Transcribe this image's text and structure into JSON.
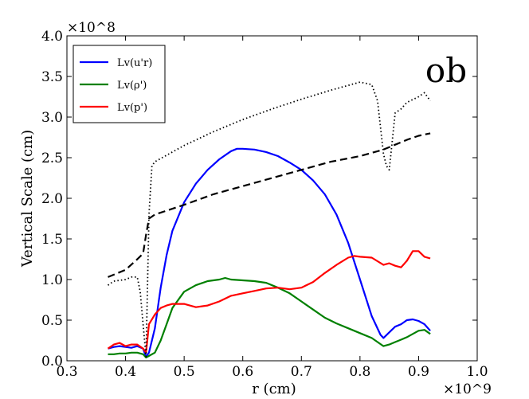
{
  "chart_data": {
    "type": "line",
    "title": "",
    "panel_label": "ob",
    "xlabel": "r (cm)",
    "ylabel": "Vertical Scale (cm)",
    "x_multiplier": "×10^9",
    "y_multiplier": "×10^8",
    "xlim": [
      0.3,
      1.0
    ],
    "ylim": [
      0.0,
      4.0
    ],
    "x_ticks": [
      0.3,
      0.4,
      0.5,
      0.6,
      0.7,
      0.8,
      0.9,
      1.0
    ],
    "x_tick_labels": [
      "0.3",
      "0.4",
      "0.5",
      "0.6",
      "0.7",
      "0.8",
      "0.9",
      "1.0"
    ],
    "y_ticks": [
      0.0,
      0.5,
      1.0,
      1.5,
      2.0,
      2.5,
      3.0,
      3.5,
      4.0
    ],
    "y_tick_labels": [
      "0.0",
      "0.5",
      "1.0",
      "1.5",
      "2.0",
      "2.5",
      "3.0",
      "3.5",
      "4.0"
    ],
    "legend_position": "upper-left",
    "series": [
      {
        "name": "Lv(u'r)",
        "color": "#0000ff",
        "style": "solid",
        "in_legend": true,
        "x": [
          0.37,
          0.38,
          0.39,
          0.4,
          0.41,
          0.42,
          0.43,
          0.435,
          0.44,
          0.45,
          0.46,
          0.47,
          0.48,
          0.5,
          0.52,
          0.54,
          0.56,
          0.58,
          0.59,
          0.6,
          0.62,
          0.64,
          0.66,
          0.68,
          0.7,
          0.72,
          0.74,
          0.76,
          0.78,
          0.8,
          0.82,
          0.835,
          0.84,
          0.85,
          0.86,
          0.87,
          0.88,
          0.89,
          0.9,
          0.91,
          0.92
        ],
        "y": [
          0.15,
          0.17,
          0.18,
          0.17,
          0.16,
          0.18,
          0.15,
          0.05,
          0.1,
          0.4,
          0.9,
          1.3,
          1.6,
          1.95,
          2.18,
          2.35,
          2.48,
          2.58,
          2.61,
          2.61,
          2.6,
          2.57,
          2.52,
          2.44,
          2.35,
          2.22,
          2.05,
          1.8,
          1.45,
          1.0,
          0.55,
          0.32,
          0.28,
          0.35,
          0.42,
          0.45,
          0.5,
          0.51,
          0.49,
          0.45,
          0.37
        ]
      },
      {
        "name": "Lv(ρ')",
        "color": "#008000",
        "style": "solid",
        "in_legend": true,
        "x": [
          0.37,
          0.38,
          0.39,
          0.4,
          0.41,
          0.42,
          0.43,
          0.435,
          0.44,
          0.45,
          0.46,
          0.47,
          0.48,
          0.5,
          0.52,
          0.54,
          0.56,
          0.57,
          0.58,
          0.6,
          0.62,
          0.64,
          0.66,
          0.68,
          0.7,
          0.72,
          0.74,
          0.76,
          0.78,
          0.8,
          0.82,
          0.84,
          0.85,
          0.86,
          0.87,
          0.88,
          0.89,
          0.9,
          0.91,
          0.92
        ],
        "y": [
          0.08,
          0.08,
          0.09,
          0.09,
          0.1,
          0.1,
          0.08,
          0.04,
          0.06,
          0.1,
          0.25,
          0.45,
          0.65,
          0.85,
          0.93,
          0.98,
          1.0,
          1.02,
          1.0,
          0.99,
          0.98,
          0.96,
          0.9,
          0.83,
          0.73,
          0.63,
          0.53,
          0.46,
          0.4,
          0.34,
          0.28,
          0.18,
          0.2,
          0.23,
          0.26,
          0.29,
          0.33,
          0.37,
          0.38,
          0.33
        ]
      },
      {
        "name": "Lv(p')",
        "color": "#ff0000",
        "style": "solid",
        "in_legend": true,
        "x": [
          0.37,
          0.38,
          0.39,
          0.4,
          0.41,
          0.42,
          0.43,
          0.435,
          0.44,
          0.45,
          0.46,
          0.47,
          0.48,
          0.5,
          0.52,
          0.54,
          0.56,
          0.58,
          0.6,
          0.62,
          0.64,
          0.66,
          0.68,
          0.7,
          0.72,
          0.74,
          0.76,
          0.78,
          0.79,
          0.8,
          0.82,
          0.84,
          0.85,
          0.86,
          0.87,
          0.88,
          0.89,
          0.9,
          0.91,
          0.92
        ],
        "y": [
          0.15,
          0.2,
          0.22,
          0.18,
          0.2,
          0.2,
          0.15,
          0.1,
          0.45,
          0.57,
          0.65,
          0.68,
          0.7,
          0.7,
          0.66,
          0.68,
          0.73,
          0.8,
          0.83,
          0.86,
          0.89,
          0.9,
          0.88,
          0.9,
          0.97,
          1.08,
          1.18,
          1.27,
          1.29,
          1.28,
          1.27,
          1.18,
          1.2,
          1.17,
          1.15,
          1.23,
          1.35,
          1.35,
          1.28,
          1.26
        ]
      },
      {
        "name": "dashed reference",
        "color": "#000000",
        "style": "dashed",
        "in_legend": false,
        "x": [
          0.37,
          0.4,
          0.42,
          0.43,
          0.435,
          0.44,
          0.45,
          0.5,
          0.55,
          0.6,
          0.65,
          0.7,
          0.75,
          0.8,
          0.84,
          0.86,
          0.88,
          0.9,
          0.92
        ],
        "y": [
          1.03,
          1.12,
          1.25,
          1.32,
          1.55,
          1.75,
          1.8,
          1.92,
          2.05,
          2.15,
          2.25,
          2.35,
          2.45,
          2.52,
          2.6,
          2.66,
          2.72,
          2.77,
          2.8
        ]
      },
      {
        "name": "dotted reference",
        "color": "#000000",
        "style": "dotted",
        "in_legend": false,
        "x": [
          0.37,
          0.38,
          0.4,
          0.41,
          0.42,
          0.425,
          0.43,
          0.435,
          0.44,
          0.445,
          0.45,
          0.5,
          0.55,
          0.6,
          0.65,
          0.7,
          0.75,
          0.8,
          0.82,
          0.83,
          0.84,
          0.845,
          0.85,
          0.855,
          0.86,
          0.87,
          0.88,
          0.9,
          0.91,
          0.92
        ],
        "y": [
          0.93,
          0.98,
          1.0,
          1.03,
          1.03,
          0.85,
          0.45,
          0.05,
          1.8,
          2.4,
          2.45,
          2.65,
          2.82,
          2.97,
          3.1,
          3.22,
          3.33,
          3.43,
          3.4,
          3.2,
          2.55,
          2.4,
          2.35,
          2.7,
          3.05,
          3.1,
          3.18,
          3.25,
          3.3,
          3.2
        ]
      }
    ]
  }
}
